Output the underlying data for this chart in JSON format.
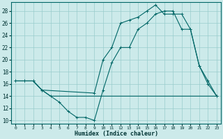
{
  "xlabel": "Humidex (Indice chaleur)",
  "bg_color": "#cceaea",
  "grid_color": "#99cccc",
  "line_color": "#006666",
  "series1_x": [
    0,
    1,
    2,
    3,
    4,
    5,
    6,
    7,
    8,
    9,
    10,
    11,
    12,
    13,
    14,
    15,
    16,
    17,
    18,
    19,
    20,
    21,
    22,
    23
  ],
  "series1_y": [
    16.5,
    16.5,
    16.5,
    15.0,
    14.0,
    13.0,
    11.5,
    10.5,
    10.5,
    10.0,
    15.0,
    19.5,
    22.0,
    22.0,
    25.0,
    26.0,
    27.5,
    28.0,
    28.0,
    25.0,
    25.0,
    19.0,
    16.0,
    14.0
  ],
  "series2_x": [
    0,
    1,
    2,
    3,
    4,
    5,
    6,
    7,
    8,
    9,
    10,
    11,
    12,
    13,
    14,
    15,
    16,
    17,
    18,
    19,
    20,
    21,
    22,
    23
  ],
  "series2_y": [
    16.5,
    16.5,
    16.5,
    15.0,
    14.0,
    14.0,
    14.0,
    14.0,
    14.0,
    14.0,
    14.0,
    14.0,
    14.0,
    14.0,
    14.0,
    14.0,
    14.0,
    14.0,
    14.0,
    14.0,
    14.0,
    14.0,
    14.0,
    14.0
  ],
  "series3_x": [
    0,
    1,
    2,
    3,
    9,
    10,
    11,
    12,
    13,
    14,
    15,
    16,
    17,
    18,
    19,
    20,
    21,
    22,
    23
  ],
  "series3_y": [
    16.5,
    16.5,
    16.5,
    15.0,
    14.5,
    20.0,
    22.0,
    26.0,
    26.5,
    27.0,
    28.0,
    29.0,
    27.5,
    27.5,
    27.5,
    25.0,
    19.0,
    16.5,
    14.0
  ],
  "xticks": [
    0,
    1,
    2,
    3,
    4,
    5,
    6,
    7,
    8,
    9,
    10,
    11,
    12,
    13,
    14,
    15,
    16,
    17,
    18,
    19,
    20,
    21,
    22,
    23
  ],
  "yticks": [
    10,
    12,
    14,
    16,
    18,
    20,
    22,
    24,
    26,
    28
  ],
  "xlim": [
    -0.5,
    23.5
  ],
  "ylim": [
    9.5,
    29.5
  ]
}
